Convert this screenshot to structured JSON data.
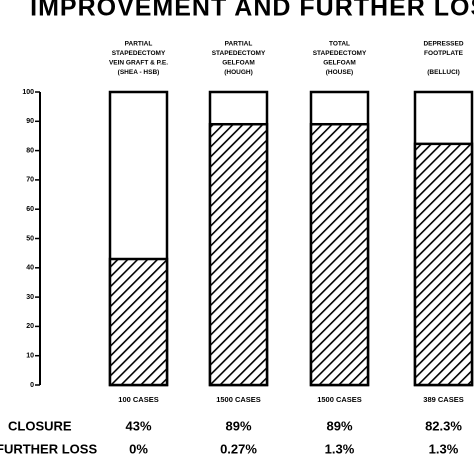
{
  "chart_data": {
    "type": "stacked-percent-bar",
    "title": "IMPROVEMENT AND FURTHER LOSS",
    "categories": [
      [
        "PARTIAL",
        "STAPEDECTOMY",
        "VEIN GRAFT & P.E.",
        "(SHEA - HSB)"
      ],
      [
        "PARTIAL",
        "STAPEDECTOMY",
        "GELFOAM",
        "(HOUGH)"
      ],
      [
        "TOTAL",
        "STAPEDECTOMY",
        "GELFOAM",
        "(HOUSE)"
      ],
      [
        "DEPRESSED",
        "FOOTPLATE",
        "",
        "(BELLUCI)"
      ]
    ],
    "cases": [
      "100 CASES",
      "1500 CASES",
      "1500 CASES",
      "389 CASES"
    ],
    "series": [
      {
        "name": "CLOSURE",
        "color": "#000000",
        "values": [
          43,
          89,
          89,
          82.3
        ],
        "value_labels": [
          "43%",
          "89%",
          "89%",
          "82.3%"
        ]
      },
      {
        "name": "FURTHER LOSS",
        "values": [
          0,
          0.27,
          1.3,
          1.3
        ],
        "value_labels": [
          "0%",
          "0.27%",
          "1.3%",
          "1.3%"
        ]
      }
    ],
    "ylim": [
      0,
      100
    ],
    "yticks": [
      0,
      10,
      20,
      30,
      40,
      50,
      60,
      70,
      80,
      90,
      100
    ]
  }
}
